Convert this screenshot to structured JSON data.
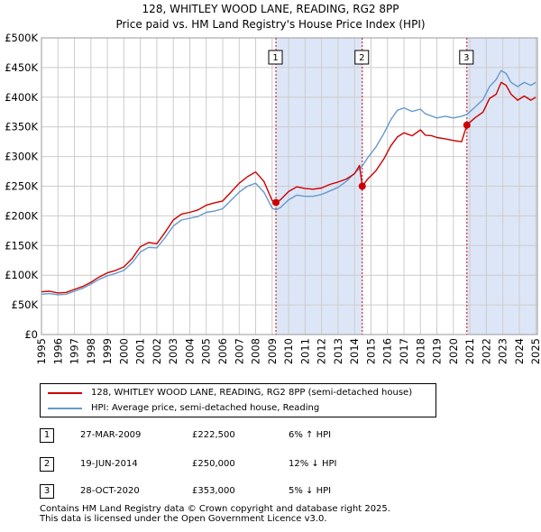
{
  "chart_data": {
    "type": "line",
    "title": "128, WHITLEY WOOD LANE, READING, RG2 8PP",
    "subtitle": "Price paid vs. HM Land Registry's House Price Index (HPI)",
    "xlabel": "",
    "ylabel": "",
    "xlim": [
      1995,
      2025.1
    ],
    "ylim": [
      0,
      500000
    ],
    "x_ticks": [
      "1995",
      "1996",
      "1997",
      "1998",
      "1999",
      "2000",
      "2001",
      "2002",
      "2003",
      "2004",
      "2005",
      "2006",
      "2007",
      "2008",
      "2009",
      "2010",
      "2011",
      "2012",
      "2013",
      "2014",
      "2015",
      "2016",
      "2017",
      "2018",
      "2019",
      "2020",
      "2021",
      "2022",
      "2023",
      "2024",
      "2025"
    ],
    "y_ticks": [
      {
        "value": 0,
        "label": "£0"
      },
      {
        "value": 50000,
        "label": "£50K"
      },
      {
        "value": 100000,
        "label": "£100K"
      },
      {
        "value": 150000,
        "label": "£150K"
      },
      {
        "value": 200000,
        "label": "£200K"
      },
      {
        "value": 250000,
        "label": "£250K"
      },
      {
        "value": 300000,
        "label": "£300K"
      },
      {
        "value": 350000,
        "label": "£350K"
      },
      {
        "value": 400000,
        "label": "£400K"
      },
      {
        "value": 450000,
        "label": "£450K"
      },
      {
        "value": 500000,
        "label": "£500K"
      }
    ],
    "grid": true,
    "series": [
      {
        "name": "128, WHITLEY WOOD LANE, READING, RG2 8PP (semi-detached house)",
        "color": "#cc0000",
        "points": [
          [
            1995.0,
            72000
          ],
          [
            1995.5,
            73000
          ],
          [
            1996.0,
            70000
          ],
          [
            1996.5,
            71000
          ],
          [
            1997.0,
            76000
          ],
          [
            1997.5,
            81000
          ],
          [
            1998.0,
            88000
          ],
          [
            1998.5,
            97000
          ],
          [
            1999.0,
            104000
          ],
          [
            1999.5,
            108000
          ],
          [
            2000.0,
            114000
          ],
          [
            2000.5,
            128000
          ],
          [
            2001.0,
            148000
          ],
          [
            2001.5,
            155000
          ],
          [
            2002.0,
            153000
          ],
          [
            2002.5,
            172000
          ],
          [
            2003.0,
            193000
          ],
          [
            2003.5,
            203000
          ],
          [
            2004.0,
            206000
          ],
          [
            2004.5,
            210000
          ],
          [
            2005.0,
            218000
          ],
          [
            2005.5,
            222000
          ],
          [
            2006.0,
            225000
          ],
          [
            2006.5,
            240000
          ],
          [
            2007.0,
            255000
          ],
          [
            2007.5,
            266000
          ],
          [
            2008.0,
            274000
          ],
          [
            2008.5,
            258000
          ],
          [
            2009.0,
            226000
          ],
          [
            2009.23,
            222500
          ],
          [
            2009.5,
            227000
          ],
          [
            2010.0,
            241000
          ],
          [
            2010.5,
            249000
          ],
          [
            2011.0,
            246000
          ],
          [
            2011.5,
            245000
          ],
          [
            2012.0,
            247000
          ],
          [
            2012.5,
            253000
          ],
          [
            2013.0,
            257000
          ],
          [
            2013.5,
            262000
          ],
          [
            2014.0,
            271000
          ],
          [
            2014.3,
            285000
          ],
          [
            2014.47,
            250000
          ],
          [
            2014.8,
            262000
          ],
          [
            2015.3,
            276000
          ],
          [
            2015.8,
            297000
          ],
          [
            2016.2,
            318000
          ],
          [
            2016.6,
            333000
          ],
          [
            2017.0,
            340000
          ],
          [
            2017.5,
            335000
          ],
          [
            2018.0,
            345000
          ],
          [
            2018.3,
            336000
          ],
          [
            2018.7,
            335000
          ],
          [
            2019.0,
            332000
          ],
          [
            2019.5,
            330000
          ],
          [
            2020.0,
            327000
          ],
          [
            2020.5,
            325000
          ],
          [
            2020.82,
            353000
          ],
          [
            2021.3,
            365000
          ],
          [
            2021.8,
            375000
          ],
          [
            2022.2,
            398000
          ],
          [
            2022.6,
            405000
          ],
          [
            2022.9,
            425000
          ],
          [
            2023.2,
            420000
          ],
          [
            2023.5,
            405000
          ],
          [
            2023.9,
            395000
          ],
          [
            2024.3,
            402000
          ],
          [
            2024.7,
            395000
          ],
          [
            2025.0,
            400000
          ]
        ]
      },
      {
        "name": "HPI: Average price, semi-detached house, Reading",
        "color": "#6699cc",
        "points": [
          [
            1995.0,
            68000
          ],
          [
            1995.5,
            69000
          ],
          [
            1996.0,
            67000
          ],
          [
            1996.5,
            68000
          ],
          [
            1997.0,
            73000
          ],
          [
            1997.5,
            78000
          ],
          [
            1998.0,
            85000
          ],
          [
            1998.5,
            93000
          ],
          [
            1999.0,
            99000
          ],
          [
            1999.5,
            103000
          ],
          [
            2000.0,
            108000
          ],
          [
            2000.5,
            121000
          ],
          [
            2001.0,
            139000
          ],
          [
            2001.5,
            147000
          ],
          [
            2002.0,
            146000
          ],
          [
            2002.5,
            163000
          ],
          [
            2003.0,
            183000
          ],
          [
            2003.5,
            193000
          ],
          [
            2004.0,
            196000
          ],
          [
            2004.5,
            199000
          ],
          [
            2005.0,
            206000
          ],
          [
            2005.5,
            208000
          ],
          [
            2006.0,
            212000
          ],
          [
            2006.5,
            226000
          ],
          [
            2007.0,
            240000
          ],
          [
            2007.5,
            250000
          ],
          [
            2008.0,
            255000
          ],
          [
            2008.5,
            240000
          ],
          [
            2009.0,
            213000
          ],
          [
            2009.23,
            210000
          ],
          [
            2009.5,
            214000
          ],
          [
            2010.0,
            227000
          ],
          [
            2010.5,
            235000
          ],
          [
            2011.0,
            233000
          ],
          [
            2011.5,
            233000
          ],
          [
            2012.0,
            236000
          ],
          [
            2012.5,
            242000
          ],
          [
            2013.0,
            248000
          ],
          [
            2013.5,
            258000
          ],
          [
            2014.0,
            272000
          ],
          [
            2014.47,
            284000
          ],
          [
            2014.8,
            298000
          ],
          [
            2015.3,
            316000
          ],
          [
            2015.8,
            340000
          ],
          [
            2016.2,
            362000
          ],
          [
            2016.6,
            378000
          ],
          [
            2017.0,
            382000
          ],
          [
            2017.5,
            376000
          ],
          [
            2018.0,
            380000
          ],
          [
            2018.3,
            372000
          ],
          [
            2018.7,
            368000
          ],
          [
            2019.0,
            365000
          ],
          [
            2019.5,
            368000
          ],
          [
            2020.0,
            365000
          ],
          [
            2020.5,
            368000
          ],
          [
            2020.82,
            371000
          ],
          [
            2021.3,
            383000
          ],
          [
            2021.8,
            396000
          ],
          [
            2022.2,
            418000
          ],
          [
            2022.6,
            430000
          ],
          [
            2022.9,
            445000
          ],
          [
            2023.2,
            440000
          ],
          [
            2023.5,
            425000
          ],
          [
            2023.9,
            418000
          ],
          [
            2024.3,
            425000
          ],
          [
            2024.7,
            420000
          ],
          [
            2025.0,
            425000
          ]
        ]
      }
    ],
    "sales": [
      {
        "label": "1",
        "x": 2009.23,
        "price": 222500
      },
      {
        "label": "2",
        "x": 2014.47,
        "price": 250000
      },
      {
        "label": "3",
        "x": 2020.82,
        "price": 353000
      }
    ],
    "shaded_regions": [
      [
        2009.23,
        2014.47
      ],
      [
        2020.82,
        2025.1
      ]
    ],
    "legend_position": "below"
  },
  "legend": {
    "price_paid": "128, WHITLEY WOOD LANE, READING, RG2 8PP (semi-detached house)",
    "hpi": "HPI: Average price, semi-detached house, Reading"
  },
  "transactions": [
    {
      "num": "1",
      "date": "27-MAR-2009",
      "price": "£222,500",
      "hpi": "6% ↑ HPI"
    },
    {
      "num": "2",
      "date": "19-JUN-2014",
      "price": "£250,000",
      "hpi": "12% ↓ HPI"
    },
    {
      "num": "3",
      "date": "28-OCT-2020",
      "price": "£353,000",
      "hpi": "5% ↓ HPI"
    }
  ],
  "footer": {
    "line1": "Contains HM Land Registry data © Crown copyright and database right 2025.",
    "line2": "This data is licensed under the Open Government Licence v3.0."
  },
  "colors": {
    "price_line": "#cc0000",
    "hpi_line": "#6699cc",
    "shade": "#dde6f7",
    "grid": "#cccccc",
    "marker_line": "#cc0000"
  }
}
